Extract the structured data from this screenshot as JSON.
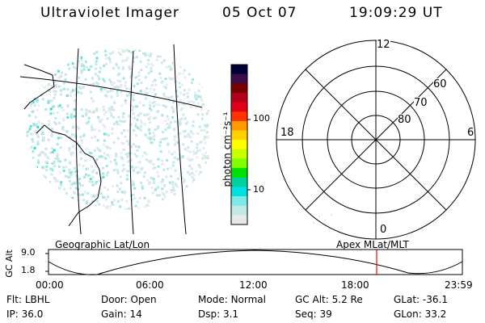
{
  "header": {
    "title": "Ultraviolet Imager",
    "date": "05 Oct 07",
    "time": "19:09:29 UT"
  },
  "geo_panel": {
    "label": "Geographic Lat/Lon"
  },
  "colorbar": {
    "unit_label": "photon cm⁻²s⁻¹",
    "ticks": [
      "100",
      "10"
    ],
    "colors": [
      "#000033",
      "#3a0d4a",
      "#7a0000",
      "#b3001a",
      "#e0001c",
      "#ff3300",
      "#ff9900",
      "#ffd000",
      "#ffff00",
      "#c8ff00",
      "#7fff00",
      "#00e000",
      "#00d0a0",
      "#00e0e0",
      "#7fe8e8",
      "#bfe8e8",
      "#e8e8e8"
    ]
  },
  "polar_panel": {
    "label": "Apex MLat/MLT",
    "mlt_labels": {
      "top": "12",
      "bottom": "0",
      "left": "18",
      "right": "6"
    },
    "mlat_labels": [
      "60",
      "70",
      "80"
    ]
  },
  "alt_plot": {
    "ylabel": "GC Alt",
    "yticks": [
      "9.0",
      "1.8"
    ],
    "xticks": [
      "00:00",
      "06:00",
      "12:00",
      "18:00",
      "23:59"
    ],
    "marker_color": "#ff0000"
  },
  "status": {
    "row1": [
      {
        "key": "Flt:",
        "value": "LBHL"
      },
      {
        "key": "Door:",
        "value": "Open"
      },
      {
        "key": "Mode:",
        "value": "Normal"
      },
      {
        "key": "GC Alt:",
        "value": "5.2 Re"
      },
      {
        "key": "GLat:",
        "value": "-36.1"
      }
    ],
    "row2": [
      {
        "key": "IP:",
        "value": "36.0"
      },
      {
        "key": "Gain:",
        "value": "14"
      },
      {
        "key": "Dsp:",
        "value": "3.1"
      },
      {
        "key": "Seq:",
        "value": "39"
      },
      {
        "key": "GLon:",
        "value": "33.2"
      }
    ]
  }
}
